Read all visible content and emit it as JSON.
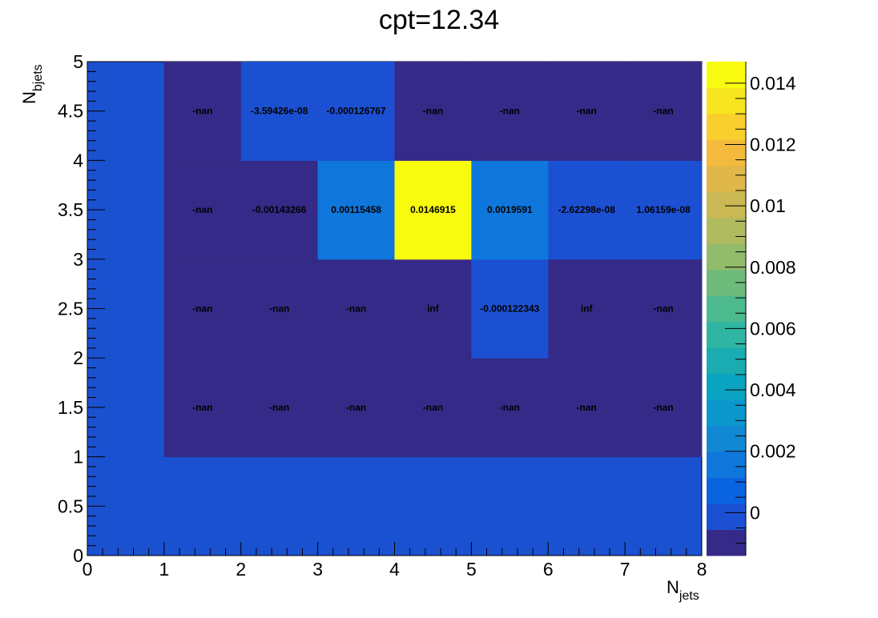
{
  "chart_data": {
    "type": "heatmap",
    "title": "cpt=12.34",
    "xlabel": {
      "main": "N",
      "sub": "jets"
    },
    "ylabel": {
      "main": "N",
      "sub": "bjets"
    },
    "xlim": [
      0,
      8
    ],
    "ylim": [
      0,
      5
    ],
    "x_edges": [
      0,
      1,
      2,
      3,
      4,
      5,
      6,
      7,
      8
    ],
    "y_edges": [
      0,
      1,
      2,
      3,
      4,
      5
    ],
    "x_ticks": [
      "0",
      "1",
      "2",
      "3",
      "4",
      "5",
      "6",
      "7",
      "8"
    ],
    "y_ticks": [
      "0",
      "0.5",
      "1",
      "1.5",
      "2",
      "2.5",
      "3",
      "3.5",
      "4",
      "4.5",
      "5"
    ],
    "zlim": [
      -0.0014,
      0.0147
    ],
    "z_ticks": [
      "0",
      "0.002",
      "0.004",
      "0.006",
      "0.008",
      "0.01",
      "0.012",
      "0.014"
    ],
    "cells": [
      {
        "x": 1,
        "y": 1,
        "value": null,
        "label": "-nan"
      },
      {
        "x": 2,
        "y": 1,
        "value": null,
        "label": "-nan"
      },
      {
        "x": 3,
        "y": 1,
        "value": null,
        "label": "-nan"
      },
      {
        "x": 4,
        "y": 1,
        "value": null,
        "label": "-nan"
      },
      {
        "x": 5,
        "y": 1,
        "value": null,
        "label": "-nan"
      },
      {
        "x": 6,
        "y": 1,
        "value": null,
        "label": "-nan"
      },
      {
        "x": 7,
        "y": 1,
        "value": null,
        "label": "-nan"
      },
      {
        "x": 1,
        "y": 2,
        "value": null,
        "label": "-nan"
      },
      {
        "x": 2,
        "y": 2,
        "value": null,
        "label": "-nan"
      },
      {
        "x": 3,
        "y": 2,
        "value": null,
        "label": "-nan"
      },
      {
        "x": 4,
        "y": 2,
        "value": null,
        "label": "inf"
      },
      {
        "x": 5,
        "y": 2,
        "value": -0.000122343,
        "label": "-0.000122343"
      },
      {
        "x": 6,
        "y": 2,
        "value": null,
        "label": "inf"
      },
      {
        "x": 7,
        "y": 2,
        "value": null,
        "label": "-nan"
      },
      {
        "x": 1,
        "y": 3,
        "value": null,
        "label": "-nan"
      },
      {
        "x": 2,
        "y": 3,
        "value": -0.00143266,
        "label": "-0.00143266"
      },
      {
        "x": 3,
        "y": 3,
        "value": 0.00115458,
        "label": "0.00115458"
      },
      {
        "x": 4,
        "y": 3,
        "value": 0.0146915,
        "label": "0.0146915"
      },
      {
        "x": 5,
        "y": 3,
        "value": 0.0019591,
        "label": "0.0019591"
      },
      {
        "x": 6,
        "y": 3,
        "value": -2.62298e-08,
        "label": "-2.62298e-08"
      },
      {
        "x": 7,
        "y": 3,
        "value": 1.06159e-08,
        "label": "1.06159e-08"
      },
      {
        "x": 1,
        "y": 4,
        "value": null,
        "label": "-nan"
      },
      {
        "x": 2,
        "y": 4,
        "value": -3.59426e-08,
        "label": "-3.59426e-08"
      },
      {
        "x": 3,
        "y": 4,
        "value": -0.000126767,
        "label": "-0.000126767"
      },
      {
        "x": 4,
        "y": 4,
        "value": null,
        "label": "-nan"
      },
      {
        "x": 5,
        "y": 4,
        "value": null,
        "label": "-nan"
      },
      {
        "x": 6,
        "y": 4,
        "value": null,
        "label": "-nan"
      },
      {
        "x": 7,
        "y": 4,
        "value": null,
        "label": "-nan"
      }
    ],
    "colors": {
      "background_zero": "#1a51d0",
      "nan": "#352a87",
      "inf": "#352a87",
      "palette": [
        "#352a87",
        "#1c50d2",
        "#0a63e1",
        "#0f77db",
        "#1288d4",
        "#0c97cc",
        "#0aa3c2",
        "#1bacb2",
        "#2fb5a2",
        "#4cb98e",
        "#6ebb7c",
        "#92bb6c",
        "#b0ba5e",
        "#c9b853",
        "#e0b749",
        "#f4ba3e",
        "#f8cf2c",
        "#f6e51f",
        "#f9fb0e"
      ]
    },
    "grid": false
  }
}
